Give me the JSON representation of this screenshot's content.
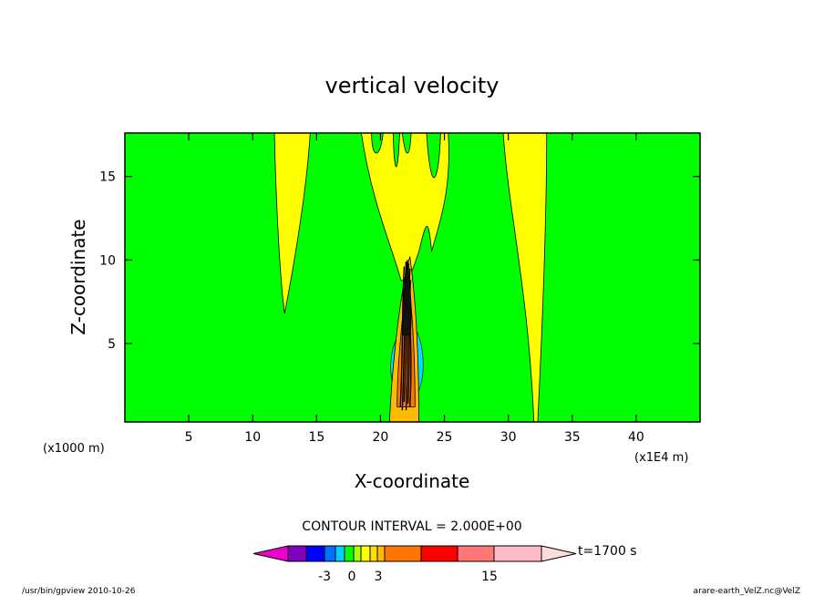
{
  "chart_data": {
    "type": "contour",
    "title": "vertical velocity",
    "xlabel": "X-coordinate",
    "ylabel": "Z-coordinate",
    "x_unit_left": "(x1000 m)",
    "x_unit_right": "(x1E4 m)",
    "xlim": [
      0,
      45
    ],
    "ylim": [
      0.3,
      17.6
    ],
    "xticks": [
      5,
      10,
      15,
      20,
      25,
      30,
      35,
      40
    ],
    "xtick_labels": [
      "5",
      "10",
      "15",
      "20",
      "25",
      "30",
      "35",
      "40"
    ],
    "yticks": [
      5,
      10,
      15
    ],
    "ytick_labels": [
      "5",
      "10",
      "15"
    ],
    "contour_interval": "CONTOUR INTERVAL = 2.000E+00",
    "time_label": "t=1700 s",
    "background_color": "#00ff00",
    "updraft_plumes": [
      {
        "x_center": 12.5,
        "top": 17.6,
        "bottom": 6.8,
        "color": "#ffff00"
      },
      {
        "x_center": 22.0,
        "top": 17.6,
        "bottom": 8.5,
        "color": "#ffff00"
      },
      {
        "x_center": 32.0,
        "top": 17.6,
        "bottom": 0.3,
        "color": "#ffff00"
      }
    ],
    "core_region": {
      "x_min": 20.7,
      "x_max": 23.0,
      "z_min": 0.3,
      "z_max": 10.2
    },
    "colorbar": {
      "levels_labeled": [
        "-3",
        "0",
        "3",
        "15"
      ],
      "colors": [
        "#ee00cc",
        "#7f00bf",
        "#0000ff",
        "#0070ff",
        "#00d0ff",
        "#00ff00",
        "#aaff00",
        "#ffff00",
        "#ffdd00",
        "#ffbb00",
        "#ff7700",
        "#ff0000",
        "#ff7777",
        "#ffbbcc",
        "#ffdddd"
      ]
    }
  },
  "footer": {
    "left": "/usr/bin/gpview  2010-10-26",
    "right": "arare-earth_VelZ.nc@VelZ"
  }
}
